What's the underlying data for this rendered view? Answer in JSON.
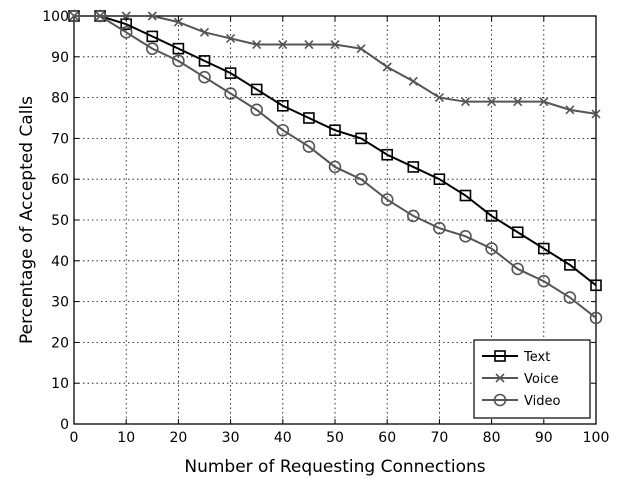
{
  "chart_data": {
    "type": "line",
    "title": "",
    "xlabel": "Number of Requesting Connections",
    "ylabel": "Percentage of Accepted Calls",
    "xlim": [
      0,
      100
    ],
    "ylim": [
      0,
      100
    ],
    "xticks": [
      0,
      10,
      20,
      30,
      40,
      50,
      60,
      70,
      80,
      90,
      100
    ],
    "yticks": [
      0,
      10,
      20,
      30,
      40,
      50,
      60,
      70,
      80,
      90,
      100
    ],
    "grid": true,
    "grid_style": "dotted",
    "legend_position": "bottom-right",
    "x": [
      0,
      5,
      10,
      15,
      20,
      25,
      30,
      35,
      40,
      45,
      50,
      55,
      60,
      65,
      70,
      75,
      80,
      85,
      90,
      95,
      100
    ],
    "series": [
      {
        "name": "Text",
        "marker": "square",
        "color": "#000000",
        "values": [
          100,
          100,
          98,
          95,
          92,
          89,
          86,
          82,
          78,
          75,
          72,
          70,
          66,
          63,
          60,
          56,
          51,
          47,
          43,
          39,
          34
        ]
      },
      {
        "name": "Voice",
        "marker": "x",
        "color": "#555555",
        "values": [
          100,
          100,
          100,
          100,
          98.5,
          96,
          94.5,
          93,
          93,
          93,
          93,
          92,
          87.5,
          84,
          80,
          79,
          79,
          79,
          79,
          77,
          76
        ]
      },
      {
        "name": "Video",
        "marker": "circle",
        "color": "#555555",
        "values": [
          100,
          100,
          96,
          92,
          89,
          85,
          81,
          77,
          72,
          68,
          63,
          60,
          55,
          51,
          48,
          46,
          43,
          38,
          35,
          31,
          26
        ]
      }
    ]
  }
}
